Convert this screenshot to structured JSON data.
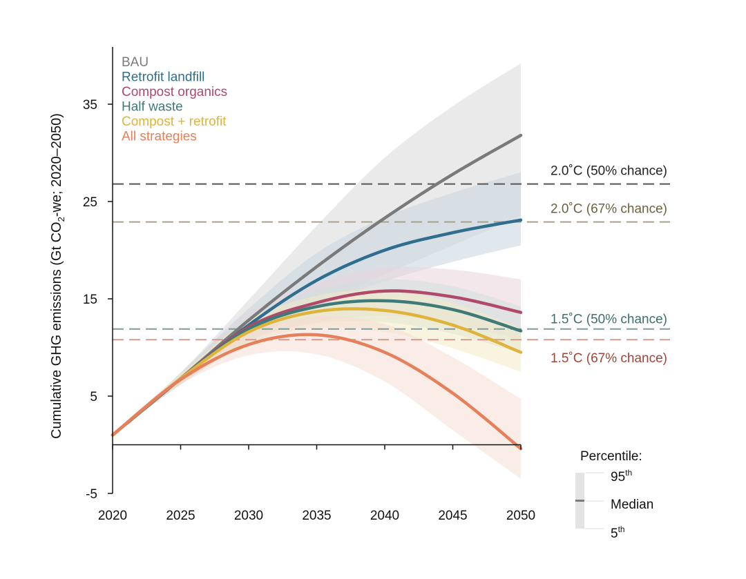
{
  "chart_data": {
    "type": "line",
    "title": "",
    "xlabel": "",
    "ylabel": "Cumulative GHG emissions (Gt CO2-we; 2020–2050)",
    "ylabel_parts": {
      "pre": "Cumulative GHG emissions (Gt CO",
      "sub": "2",
      "post": "-we; 2020–2050)"
    },
    "xlim": [
      2020,
      2050
    ],
    "ylim": [
      -5,
      40
    ],
    "x_ticks": [
      2020,
      2025,
      2030,
      2035,
      2040,
      2045,
      2050
    ],
    "y_ticks": [
      -5,
      5,
      15,
      25,
      35
    ],
    "legend_placement": "top-left",
    "x": [
      2020,
      2025,
      2030,
      2035,
      2040,
      2045,
      2050
    ],
    "series": [
      {
        "name": "BAU",
        "color": "#7a7a7a",
        "band": "#d9d9d9",
        "median": [
          1,
          6.8,
          12.8,
          18.3,
          23.3,
          27.8,
          31.8
        ],
        "p5": [
          1,
          6.2,
          10.8,
          14.3,
          17.5,
          20.5,
          23.5
        ],
        "p95": [
          1,
          7.4,
          14.9,
          22.5,
          29.5,
          34.8,
          39.2
        ]
      },
      {
        "name": "Retrofit landfill",
        "color": "#2f6e8e",
        "band": "#c6d5e0",
        "median": [
          1,
          6.8,
          12.3,
          16.9,
          20.0,
          21.8,
          23.1
        ],
        "p5": [
          1,
          6.2,
          10.6,
          14.2,
          16.8,
          18.8,
          20.5
        ],
        "p95": [
          1,
          7.4,
          14.0,
          19.7,
          23.4,
          25.9,
          28.0
        ]
      },
      {
        "name": "Compost organics",
        "color": "#b04a6a",
        "band": "#ead3dc",
        "median": [
          1,
          6.8,
          12.1,
          14.6,
          15.8,
          15.2,
          13.6
        ],
        "p5": [
          1,
          6.3,
          10.7,
          12.6,
          13.3,
          12.4,
          10.8
        ],
        "p95": [
          1,
          7.3,
          13.6,
          16.6,
          18.2,
          18.0,
          17.0
        ]
      },
      {
        "name": "Half waste",
        "color": "#3d7a78",
        "band": "#cfdedc",
        "median": [
          1,
          6.8,
          11.9,
          14.2,
          14.8,
          13.9,
          11.7
        ],
        "p5": [
          1,
          6.3,
          10.6,
          12.5,
          12.6,
          11.4,
          9.4
        ],
        "p95": [
          1,
          7.3,
          13.2,
          15.9,
          17.0,
          16.3,
          14.2
        ]
      },
      {
        "name": "Compost + retrofit",
        "color": "#e0b33c",
        "band": "#f3ebc6",
        "median": [
          1,
          6.8,
          11.6,
          13.7,
          13.8,
          12.3,
          9.5
        ],
        "p5": [
          1,
          6.3,
          10.4,
          12.0,
          11.6,
          9.9,
          7.5
        ],
        "p95": [
          1,
          7.3,
          12.8,
          15.3,
          15.9,
          14.6,
          12.0
        ]
      },
      {
        "name": "All strategies",
        "color": "#e5805a",
        "band": "#f6dcd3",
        "median": [
          1,
          6.7,
          10.3,
          11.3,
          9.5,
          5.3,
          -0.4
        ],
        "p5": [
          1,
          6.2,
          9.2,
          9.3,
          6.5,
          1.5,
          -3.5
        ],
        "p95": [
          1,
          7.2,
          11.4,
          13.2,
          12.4,
          9.0,
          4.7
        ]
      }
    ],
    "thresholds": [
      {
        "label": "2.0˚C (50% chance)",
        "value": 26.8,
        "color": "#555555",
        "text_color": "#222222"
      },
      {
        "label": "2.0˚C (67% chance)",
        "value": 22.9,
        "color": "#a8a08a",
        "text_color": "#6e6040"
      },
      {
        "label": "1.5˚C (50% chance)",
        "value": 11.9,
        "color": "#7c9a9a",
        "text_color": "#3d6e6e"
      },
      {
        "label": "1.5˚C (67% chance)",
        "value": 10.8,
        "color": "#d49a8c",
        "text_color": "#a04535"
      }
    ],
    "percentile_legend": {
      "title": "Percentile:",
      "upper": {
        "base": "95",
        "sup": "th"
      },
      "middle": "Median",
      "lower": {
        "base": "5",
        "sup": "th"
      }
    }
  }
}
